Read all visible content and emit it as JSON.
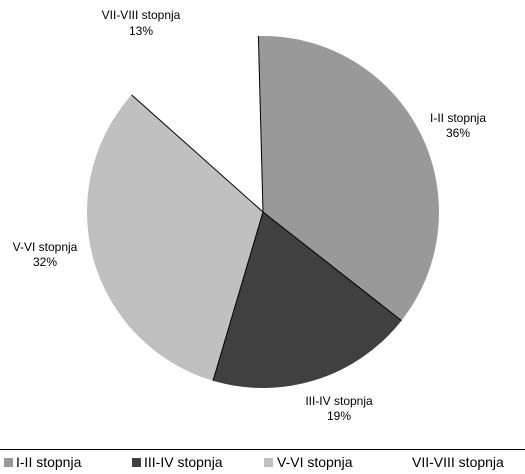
{
  "chart_data": {
    "type": "pie",
    "title": "",
    "slices": [
      {
        "label": "I-II stopnja",
        "value": 36,
        "value_label": "36%",
        "color": "#999999"
      },
      {
        "label": "III-IV stopnja",
        "value": 19,
        "value_label": "19%",
        "color": "#404040"
      },
      {
        "label": "V-VI stopnja",
        "value": 32,
        "value_label": "32%",
        "color": "#c0c0c0"
      },
      {
        "label": "VII-VIII stopnja",
        "value": 13,
        "value_label": "13%",
        "color": "#ffffff"
      }
    ],
    "legend_position": "bottom",
    "slice_border_color": "#000000"
  }
}
